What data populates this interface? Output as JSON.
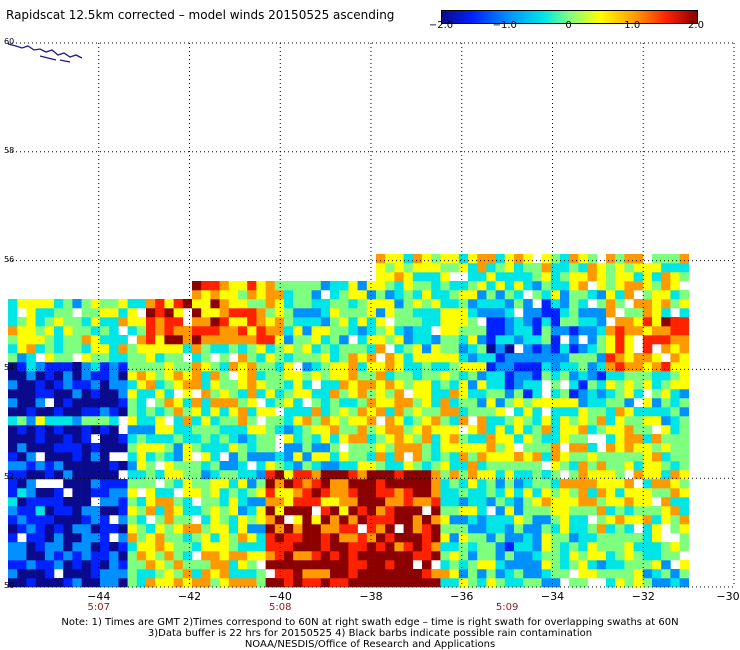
{
  "title": "Rapidscat 12.5km corrected – model winds 20150525 ascending",
  "colorbar": {
    "ticks": [
      {
        "label": "−2.0",
        "value": -2.0
      },
      {
        "label": "−1.0",
        "value": -1.0
      },
      {
        "label": "0",
        "value": 0
      },
      {
        "label": "1.0",
        "value": 1.0
      },
      {
        "label": "2.0",
        "value": 2.0
      }
    ],
    "colors": [
      "#0a0a8c",
      "#0022ff",
      "#0090ff",
      "#00e6e6",
      "#7fff7f",
      "#ffff00",
      "#ff9900",
      "#ff2200",
      "#8b0000"
    ]
  },
  "map": {
    "lon_range": [
      -46,
      -30
    ],
    "lat_range": [
      50,
      60
    ],
    "lon_ticks": [
      {
        "label": "−44",
        "value": -44
      },
      {
        "label": "−42",
        "value": -42
      },
      {
        "label": "−40",
        "value": -40
      },
      {
        "label": "−38",
        "value": -38
      },
      {
        "label": "−36",
        "value": -36
      },
      {
        "label": "−34",
        "value": -34
      },
      {
        "label": "−32",
        "value": -32
      },
      {
        "label": "−30",
        "value": -30
      }
    ],
    "lat_ticks": [
      {
        "label": "50",
        "value": 50
      },
      {
        "label": "52",
        "value": 52
      },
      {
        "label": "54",
        "value": 54
      },
      {
        "label": "56",
        "value": 56
      },
      {
        "label": "58",
        "value": 58
      },
      {
        "label": "60",
        "value": 60
      }
    ],
    "time_labels": [
      {
        "label": "5:07",
        "lon": -44
      },
      {
        "label": "5:08",
        "lon": -40
      },
      {
        "label": "5:09",
        "lon": -35
      }
    ],
    "grid": "dotted",
    "coastline_color": "#1a1a8c"
  },
  "notes": [
    "Note: 1) Times are GMT 2)Times correspond to 60N at right swath edge – time is right swath for overlapping swaths at 60N",
    "3)Data buffer is 22 hrs for 20150525 4) Black barbs indicate possible rain contamination",
    "NOAA/NESDIS/Office of Research and Applications"
  ]
}
